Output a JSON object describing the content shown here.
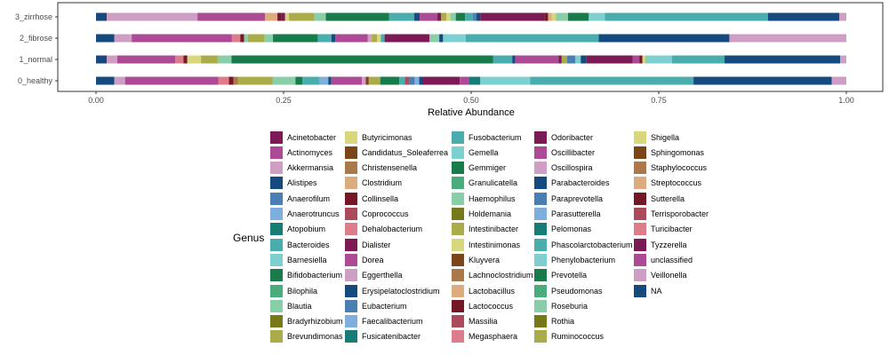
{
  "chart_data": {
    "type": "bar",
    "orientation": "horizontal",
    "stacked": true,
    "title": "",
    "xlabel": "Relative Abundance",
    "ylabel": "",
    "xlim": [
      0,
      1
    ],
    "x_ticks": [
      "0.00",
      "0.25",
      "0.50",
      "0.75",
      "1.00"
    ],
    "categories": [
      "0_healthy",
      "1_normal",
      "2_fibrose",
      "3_zirrhose"
    ],
    "legend_title": "Genus",
    "legend_position": "bottom",
    "genera": [
      {
        "name": "Acinetobacter",
        "color": "#7b1a55"
      },
      {
        "name": "Actinomyces",
        "color": "#ad4a95"
      },
      {
        "name": "Akkermansia",
        "color": "#cf9ec4"
      },
      {
        "name": "Alistipes",
        "color": "#154a7e"
      },
      {
        "name": "Anaerofilum",
        "color": "#4a7fb1"
      },
      {
        "name": "Anaerotruncus",
        "color": "#7eaedd"
      },
      {
        "name": "Atopobium",
        "color": "#177c76"
      },
      {
        "name": "Bacteroides",
        "color": "#4aacac"
      },
      {
        "name": "Barnesiella",
        "color": "#7ed0d0"
      },
      {
        "name": "Bifidobacterium",
        "color": "#177c4a"
      },
      {
        "name": "Bilophila",
        "color": "#4aac7b"
      },
      {
        "name": "Blautia",
        "color": "#88cea8"
      },
      {
        "name": "Bradyrhizobium",
        "color": "#777817"
      },
      {
        "name": "Brevundimonas",
        "color": "#acab4a"
      },
      {
        "name": "Butyricimonas",
        "color": "#d9d77c"
      },
      {
        "name": "Candidatus_Soleaferrea",
        "color": "#7b4518"
      },
      {
        "name": "Christensenella",
        "color": "#ab784a"
      },
      {
        "name": "Clostridium",
        "color": "#ddac7e"
      },
      {
        "name": "Collinsella",
        "color": "#761726"
      },
      {
        "name": "Coprococcus",
        "color": "#ab4a5b"
      },
      {
        "name": "Dehalobacterium",
        "color": "#dd7c8a"
      },
      {
        "name": "Dialister",
        "color": "#7b1a55"
      },
      {
        "name": "Dorea",
        "color": "#ad4a95"
      },
      {
        "name": "Eggerthella",
        "color": "#cf9ec4"
      },
      {
        "name": "Erysipelatoclostridium",
        "color": "#154a7e"
      },
      {
        "name": "Eubacterium",
        "color": "#4a7fb1"
      },
      {
        "name": "Faecalibacterium",
        "color": "#7eaedd"
      },
      {
        "name": "Fusicatenibacter",
        "color": "#177c76"
      },
      {
        "name": "Fusobacterium",
        "color": "#4aacac"
      },
      {
        "name": "Gemella",
        "color": "#7ed0d0"
      },
      {
        "name": "Gemmiger",
        "color": "#177c4a"
      },
      {
        "name": "Granulicatella",
        "color": "#4aac7b"
      },
      {
        "name": "Haemophilus",
        "color": "#88cea8"
      },
      {
        "name": "Holdemania",
        "color": "#777817"
      },
      {
        "name": "Intestinibacter",
        "color": "#acab4a"
      },
      {
        "name": "Intestinimonas",
        "color": "#d9d77c"
      },
      {
        "name": "Kluyvera",
        "color": "#7b4518"
      },
      {
        "name": "Lachnoclostridium",
        "color": "#ab784a"
      },
      {
        "name": "Lactobacillus",
        "color": "#ddac7e"
      },
      {
        "name": "Lactococcus",
        "color": "#761726"
      },
      {
        "name": "Massilia",
        "color": "#ab4a5b"
      },
      {
        "name": "Megasphaera",
        "color": "#dd7c8a"
      },
      {
        "name": "Odoribacter",
        "color": "#7b1a55"
      },
      {
        "name": "Oscillibacter",
        "color": "#ad4a95"
      },
      {
        "name": "Oscillospira",
        "color": "#cf9ec4"
      },
      {
        "name": "Parabacteroides",
        "color": "#154a7e"
      },
      {
        "name": "Paraprevotella",
        "color": "#4a7fb1"
      },
      {
        "name": "Parasutterella",
        "color": "#7eaedd"
      },
      {
        "name": "Pelomonas",
        "color": "#177c76"
      },
      {
        "name": "Phascolarctobacterium",
        "color": "#4aacac"
      },
      {
        "name": "Phenylobacterium",
        "color": "#7ed0d0"
      },
      {
        "name": "Prevotella",
        "color": "#177c4a"
      },
      {
        "name": "Pseudomonas",
        "color": "#4aac7b"
      },
      {
        "name": "Roseburia",
        "color": "#88cea8"
      },
      {
        "name": "Rothia",
        "color": "#777817"
      },
      {
        "name": "Ruminococcus",
        "color": "#acab4a"
      },
      {
        "name": "Shigella",
        "color": "#d9d77c"
      },
      {
        "name": "Sphingomonas",
        "color": "#7b4518"
      },
      {
        "name": "Staphylococcus",
        "color": "#ab784a"
      },
      {
        "name": "Streptococcus",
        "color": "#ddac7e"
      },
      {
        "name": "Sutterella",
        "color": "#761726"
      },
      {
        "name": "Terrisporobacter",
        "color": "#ab4a5b"
      },
      {
        "name": "Turicibacter",
        "color": "#dd7c8a"
      },
      {
        "name": "Tyzzerella",
        "color": "#7b1a55"
      },
      {
        "name": "unclassified",
        "color": "#ad4a95"
      },
      {
        "name": "Veillonella",
        "color": "#cf9ec4"
      },
      {
        "name": "NA",
        "color": "#154a7e"
      }
    ],
    "bars": [
      {
        "category": "0_healthy",
        "segments": [
          {
            "genus": "Alistipes",
            "value": 0.024
          },
          {
            "genus": "Akkermansia",
            "value": 0.014
          },
          {
            "genus": "Actinomyces",
            "value": 0.122
          },
          {
            "genus": "Dehalobacterium",
            "value": 0.014
          },
          {
            "genus": "Collinsella",
            "value": 0.006
          },
          {
            "genus": "Christensenella",
            "value": 0.006
          },
          {
            "genus": "Brevundimonas",
            "value": 0.045
          },
          {
            "genus": "Blautia",
            "value": 0.03
          },
          {
            "genus": "Bifidobacterium",
            "value": 0.009
          },
          {
            "genus": "Bacteroides",
            "value": 0.022
          },
          {
            "genus": "Faecalibacterium",
            "value": 0.012
          },
          {
            "genus": "Erysipelatoclostridium",
            "value": 0.004
          },
          {
            "genus": "Dorea",
            "value": 0.04
          },
          {
            "genus": "Eggerthella",
            "value": 0.005
          },
          {
            "genus": "Kluyvera",
            "value": 0.004
          },
          {
            "genus": "Intestinibacter",
            "value": 0.015
          },
          {
            "genus": "Gemmiger",
            "value": 0.025
          },
          {
            "genus": "Fusobacterium",
            "value": 0.007
          },
          {
            "genus": "Massilia",
            "value": 0.006
          },
          {
            "genus": "Paraprevotella",
            "value": 0.007
          },
          {
            "genus": "Parasutterella",
            "value": 0.006
          },
          {
            "genus": "Parabacteroides",
            "value": 0.004
          },
          {
            "genus": "Odoribacter",
            "value": 0.049
          },
          {
            "genus": "Oscillibacter",
            "value": 0.012
          },
          {
            "genus": "Pelomonas",
            "value": 0.015
          },
          {
            "genus": "Phenylobacterium",
            "value": 0.065
          },
          {
            "genus": "Phascolarctobacterium",
            "value": 0.214
          },
          {
            "genus": "NA",
            "value": 0.181
          },
          {
            "genus": "Veillonella",
            "value": 0.019
          }
        ]
      },
      {
        "category": "1_normal",
        "segments": [
          {
            "genus": "Alistipes",
            "value": 0.014
          },
          {
            "genus": "Akkermansia",
            "value": 0.014
          },
          {
            "genus": "Actinomyces",
            "value": 0.076
          },
          {
            "genus": "Dehalobacterium",
            "value": 0.011
          },
          {
            "genus": "Collinsella",
            "value": 0.005
          },
          {
            "genus": "Butyricimonas",
            "value": 0.018
          },
          {
            "genus": "Brevundimonas",
            "value": 0.022
          },
          {
            "genus": "Blautia",
            "value": 0.018
          },
          {
            "genus": "Bifidobacterium",
            "value": 0.344
          },
          {
            "genus": "Bacteroides",
            "value": 0.025
          },
          {
            "genus": "Alistipes",
            "value": 0.004
          },
          {
            "genus": "Actinomyces",
            "value": 0.057
          },
          {
            "genus": "Acinetobacter",
            "value": 0.004
          },
          {
            "genus": "Brevundimonas",
            "value": 0.007
          },
          {
            "genus": "Anaerofilum",
            "value": 0.011
          },
          {
            "genus": "Barnesiella",
            "value": 0.007
          },
          {
            "genus": "Alistipes",
            "value": 0.007
          },
          {
            "genus": "Acinetobacter",
            "value": 0.061
          },
          {
            "genus": "Dorea",
            "value": 0.009
          },
          {
            "genus": "Collinsella",
            "value": 0.004
          },
          {
            "genus": "Butyricimonas",
            "value": 0.004
          },
          {
            "genus": "Blautia",
            "value": 0.004
          },
          {
            "genus": "Barnesiella",
            "value": 0.031
          },
          {
            "genus": "Bacteroides",
            "value": 0.069
          },
          {
            "genus": "NA",
            "value": 0.152
          },
          {
            "genus": "Veillonella",
            "value": 0.008
          }
        ]
      },
      {
        "category": "2_fibrose",
        "segments": [
          {
            "genus": "Alistipes",
            "value": 0.024
          },
          {
            "genus": "Akkermansia",
            "value": 0.023
          },
          {
            "genus": "Actinomyces",
            "value": 0.132
          },
          {
            "genus": "Dehalobacterium",
            "value": 0.011
          },
          {
            "genus": "Collinsella",
            "value": 0.005
          },
          {
            "genus": "Blautia",
            "value": 0.005
          },
          {
            "genus": "Brevundimonas",
            "value": 0.022
          },
          {
            "genus": "Blautia",
            "value": 0.011
          },
          {
            "genus": "Bifidobacterium",
            "value": 0.059
          },
          {
            "genus": "Bacteroides",
            "value": 0.018
          },
          {
            "genus": "Alistipes",
            "value": 0.005
          },
          {
            "genus": "Actinomyces",
            "value": 0.043
          },
          {
            "genus": "Akkermansia",
            "value": 0.005
          },
          {
            "genus": "Brevundimonas",
            "value": 0.007
          },
          {
            "genus": "Butyricimonas",
            "value": 0.005
          },
          {
            "genus": "Bacteroides",
            "value": 0.005
          },
          {
            "genus": "Acinetobacter",
            "value": 0.059
          },
          {
            "genus": "Blautia",
            "value": 0.013
          },
          {
            "genus": "Alistipes",
            "value": 0.005
          },
          {
            "genus": "Barnesiella",
            "value": 0.03
          },
          {
            "genus": "Bacteroides",
            "value": 0.175
          },
          {
            "genus": "Alistipes",
            "value": 0.172
          },
          {
            "genus": "Akkermansia",
            "value": 0.154
          }
        ]
      },
      {
        "category": "3_zirrhose",
        "segments": [
          {
            "genus": "Alistipes",
            "value": 0.014
          },
          {
            "genus": "Akkermansia",
            "value": 0.118
          },
          {
            "genus": "Actinomyces",
            "value": 0.088
          },
          {
            "genus": "Clostridium",
            "value": 0.016
          },
          {
            "genus": "Collinsella",
            "value": 0.005
          },
          {
            "genus": "Acinetobacter",
            "value": 0.005
          },
          {
            "genus": "Butyricimonas",
            "value": 0.005
          },
          {
            "genus": "Brevundimonas",
            "value": 0.033
          },
          {
            "genus": "Blautia",
            "value": 0.015
          },
          {
            "genus": "Bifidobacterium",
            "value": 0.082
          },
          {
            "genus": "Bacteroides",
            "value": 0.033
          },
          {
            "genus": "Alistipes",
            "value": 0.007
          },
          {
            "genus": "Actinomyces",
            "value": 0.023
          },
          {
            "genus": "Acinetobacter",
            "value": 0.005
          },
          {
            "genus": "Brevundimonas",
            "value": 0.007
          },
          {
            "genus": "Butyricimonas",
            "value": 0.005
          },
          {
            "genus": "Blautia",
            "value": 0.007
          },
          {
            "genus": "Bifidobacterium",
            "value": 0.012
          },
          {
            "genus": "Bacteroides",
            "value": 0.01
          },
          {
            "genus": "Anaerofilum",
            "value": 0.005
          },
          {
            "genus": "Alistipes",
            "value": 0.005
          },
          {
            "genus": "Acinetobacter",
            "value": 0.083
          },
          {
            "genus": "Collinsella",
            "value": 0.005
          },
          {
            "genus": "Clostridium",
            "value": 0.005
          },
          {
            "genus": "Butyricimonas",
            "value": 0.005
          },
          {
            "genus": "Blautia",
            "value": 0.016
          },
          {
            "genus": "Bifidobacterium",
            "value": 0.027
          },
          {
            "genus": "Barnesiella",
            "value": 0.021
          },
          {
            "genus": "Bacteroides",
            "value": 0.212
          },
          {
            "genus": "Alistipes",
            "value": 0.093
          },
          {
            "genus": "Akkermansia",
            "value": 0.009
          }
        ]
      }
    ]
  }
}
